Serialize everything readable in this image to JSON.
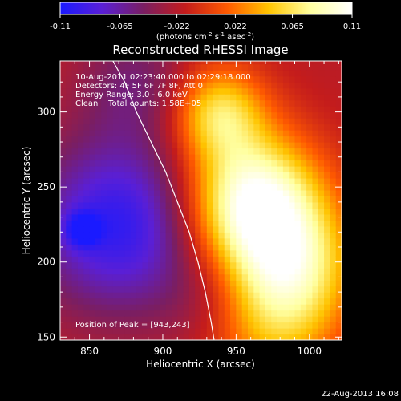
{
  "colorbar": {
    "tick_labels": [
      "-0.11",
      "-0.065",
      "-0.022",
      "0.022",
      "0.065",
      "0.11"
    ],
    "range": [
      -0.11,
      0.11
    ],
    "units_text": "(photons cm",
    "units_sup1": "-2",
    "units_mid": " s",
    "units_sup2": "-1",
    "units_tail": " asec",
    "units_sup3": "-2",
    "units_close": ")",
    "colors": [
      "#1a1aff",
      "#5a1fd6",
      "#7a1e62",
      "#c41c1c",
      "#ff5a00",
      "#ffc400",
      "#ffffa0",
      "#ffffff"
    ]
  },
  "chart_data": {
    "type": "heatmap",
    "title": "Reconstructed RHESSI Image",
    "xlabel": "Heliocentric X (arcsec)",
    "ylabel": "Heliocentric Y (arcsec)",
    "xlim": [
      830,
      1022
    ],
    "ylim": [
      148,
      334
    ],
    "x_ticks": [
      850,
      900,
      950,
      1000
    ],
    "y_ticks": [
      150,
      200,
      250,
      300
    ],
    "grid_step": 4,
    "background_value": -0.02,
    "blobs": [
      {
        "x": 962,
        "y": 240,
        "sigma": 32,
        "amp": 0.13
      },
      {
        "x": 938,
        "y": 300,
        "sigma": 22,
        "amp": 0.08
      },
      {
        "x": 990,
        "y": 200,
        "sigma": 30,
        "amp": 0.07
      },
      {
        "x": 975,
        "y": 160,
        "sigma": 32,
        "amp": 0.06
      },
      {
        "x": 870,
        "y": 225,
        "sigma": 40,
        "amp": -0.08
      },
      {
        "x": 845,
        "y": 222,
        "sigma": 8,
        "amp": -0.05
      },
      {
        "x": 882,
        "y": 320,
        "sigma": 28,
        "amp": -0.03
      },
      {
        "x": 935,
        "y": 175,
        "sigma": 25,
        "amp": -0.02
      }
    ],
    "limb_curve": [
      [
        866,
        334
      ],
      [
        874,
        320
      ],
      [
        882,
        300
      ],
      [
        892,
        280
      ],
      [
        902,
        260
      ],
      [
        910,
        240
      ],
      [
        918,
        220
      ],
      [
        924,
        200
      ],
      [
        929,
        180
      ],
      [
        933,
        160
      ],
      [
        935,
        148
      ]
    ],
    "peak": [
      943,
      243
    ]
  },
  "info": {
    "time_range": "10-Aug-2011 02:23:40.000 to 02:29:18.000",
    "detectors": "Detectors: 4F 5F 6F 7F 8F, Att 0",
    "energy": "Energy Range: 3.0 - 6.0 keV",
    "clean": "Clean    Total counts: 1.58E+05",
    "peak": "Position of Peak = [943,243]"
  },
  "footer": {
    "timestamp": "22-Aug-2013 16:08"
  }
}
